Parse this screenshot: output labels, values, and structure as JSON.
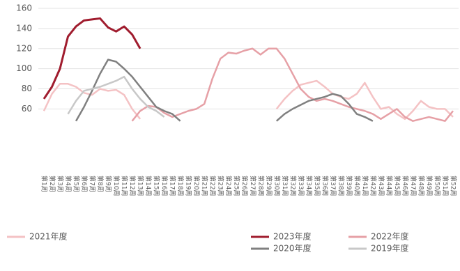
{
  "chart_data": {
    "type": "line",
    "categories": [
      "第1周",
      "第2周",
      "第3周",
      "第4周",
      "第5周",
      "第6周",
      "第7周",
      "第8周",
      "第9周",
      "第10周",
      "第11周",
      "第12周",
      "第13周",
      "第14周",
      "第15周",
      "第16周",
      "第17周",
      "第18周",
      "第19周",
      "第20周",
      "第21周",
      "第22周",
      "第23周",
      "第24周",
      "第25周",
      "第26周",
      "第27周",
      "第28周",
      "第29周",
      "第30周",
      "第31周",
      "第32周",
      "第33周",
      "第34周",
      "第35周",
      "第36周",
      "第37周",
      "第38周",
      "第39周",
      "第40周",
      "第41周",
      "第42周",
      "第43周",
      "第44周",
      "第45周",
      "第46周",
      "第47周",
      "第48周",
      "第49周",
      "第50周",
      "第51周",
      "第52周"
    ],
    "series": [
      {
        "name": "2021年度",
        "color": "#f4c2c4",
        "values": [
          58,
          75,
          85,
          85,
          82,
          76,
          74,
          80,
          78,
          79,
          74,
          60,
          50,
          null,
          null,
          null,
          null,
          null,
          null,
          null,
          null,
          null,
          null,
          null,
          null,
          null,
          null,
          null,
          null,
          60,
          70,
          78,
          84,
          86,
          88,
          82,
          75,
          72,
          70,
          75,
          86,
          72,
          60,
          62,
          55,
          50,
          58,
          68,
          62,
          60,
          60,
          52
        ]
      },
      {
        "name": "2023年度",
        "color": "#a01c2e",
        "values": [
          70,
          82,
          100,
          132,
          142,
          148,
          149,
          150,
          141,
          137,
          142,
          134,
          120,
          null,
          null,
          null,
          null,
          null,
          null,
          null,
          null,
          null,
          null,
          null,
          null,
          null,
          null,
          null,
          null,
          null,
          null,
          null,
          null,
          null,
          null,
          null,
          null,
          null,
          null,
          null,
          null,
          null,
          null,
          null,
          null,
          null,
          null,
          null,
          null,
          null,
          null,
          null
        ]
      },
      {
        "name": "2022年度",
        "color": "#e6a0a6",
        "values": [
          null,
          null,
          null,
          null,
          null,
          null,
          null,
          null,
          null,
          null,
          null,
          48,
          58,
          63,
          62,
          56,
          52,
          55,
          58,
          60,
          65,
          90,
          110,
          116,
          115,
          118,
          120,
          114,
          120,
          120,
          110,
          95,
          80,
          72,
          68,
          70,
          68,
          65,
          62,
          60,
          58,
          55,
          50,
          55,
          60,
          52,
          48,
          50,
          52,
          50,
          48,
          58
        ]
      },
      {
        "name": "2020年度",
        "color": "#808080",
        "values": [
          null,
          null,
          null,
          null,
          48,
          62,
          78,
          95,
          109,
          107,
          100,
          92,
          82,
          72,
          62,
          58,
          55,
          48,
          null,
          null,
          null,
          null,
          null,
          null,
          null,
          null,
          null,
          null,
          null,
          48,
          55,
          60,
          64,
          68,
          70,
          72,
          75,
          73,
          65,
          55,
          52,
          48,
          null,
          null,
          null,
          null,
          null,
          null,
          null,
          null,
          null,
          null
        ]
      },
      {
        "name": "2019年度",
        "color": "#c8c8c8",
        "values": [
          null,
          null,
          null,
          55,
          68,
          78,
          80,
          82,
          85,
          88,
          92,
          80,
          70,
          62,
          58,
          52,
          null,
          null,
          null,
          null,
          null,
          null,
          null,
          null,
          null,
          null,
          null,
          null,
          null,
          null,
          null,
          null,
          null,
          null,
          null,
          null,
          null,
          null,
          null,
          null,
          null,
          null,
          null,
          null,
          null,
          null,
          null,
          null,
          null,
          null,
          null,
          null
        ]
      }
    ],
    "ylim": [
      0,
      160
    ],
    "yticks": [
      60,
      80,
      100,
      120,
      140,
      160
    ],
    "grid": true
  }
}
